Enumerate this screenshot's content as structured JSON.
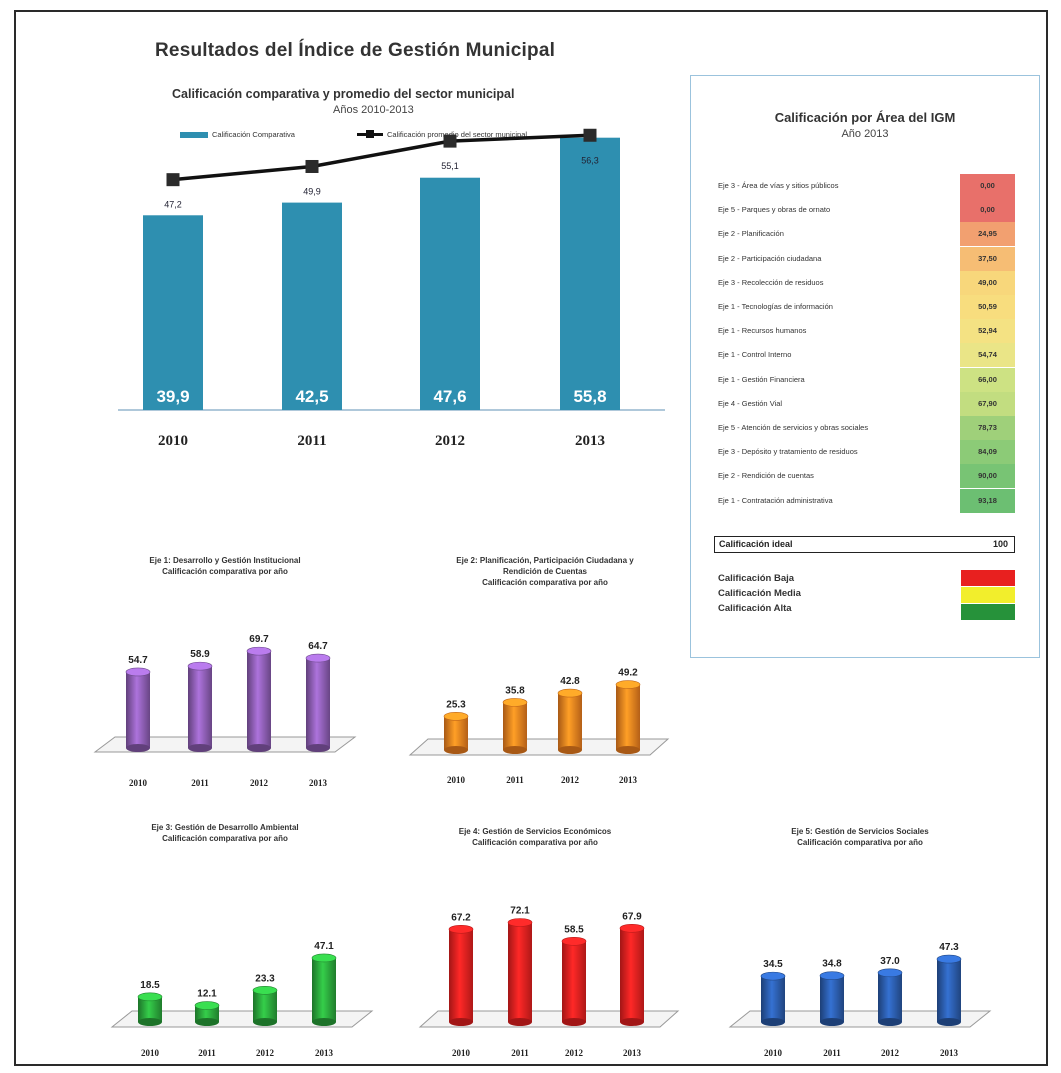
{
  "title": "Resultados del Índice de Gestión Municipal",
  "chart_data": [
    {
      "type": "bar",
      "title": "Calificación comparativa y promedio del sector municipal",
      "subtitle": "Años 2010-2013",
      "categories": [
        "2010",
        "2011",
        "2012",
        "2013"
      ],
      "series": [
        {
          "name": "Calificación Comparativa",
          "type": "bar",
          "values": [
            39.9,
            42.5,
            47.6,
            55.8
          ],
          "labels": [
            "39,9",
            "42,5",
            "47,6",
            "55,8"
          ],
          "color": "#2e8fb0"
        },
        {
          "name": "Calificación promedio del sector municipal",
          "type": "line",
          "values": [
            47.2,
            49.9,
            55.1,
            56.3
          ],
          "labels": [
            "47,2",
            "49,9",
            "55,1",
            "56,3"
          ],
          "color": "#111111"
        }
      ],
      "legend": "top"
    },
    {
      "type": "bar",
      "title": "Eje 1: Desarrollo y Gestión Institucional",
      "subtitle": "Calificación comparativa por año",
      "categories": [
        "2010",
        "2011",
        "2012",
        "2013"
      ],
      "values": [
        54.7,
        58.9,
        69.7,
        64.7
      ],
      "labels": [
        "54.7",
        "58.9",
        "69.7",
        "64.7"
      ],
      "color": "#8a5cb0"
    },
    {
      "type": "bar",
      "title": "Eje 2: Planificación, Participación Ciudadana y Rendición de Cuentas",
      "subtitle": "Calificación comparativa por año",
      "categories": [
        "2010",
        "2011",
        "2012",
        "2013"
      ],
      "values": [
        25.3,
        35.8,
        42.8,
        49.2
      ],
      "labels": [
        "25.3",
        "35.8",
        "42.8",
        "49.2"
      ],
      "color": "#f07f1e"
    },
    {
      "type": "bar",
      "title": "Eje 3: Gestión de Desarrollo Ambiental",
      "subtitle": "Calificación comparativa por año",
      "categories": [
        "2010",
        "2011",
        "2012",
        "2013"
      ],
      "values": [
        18.5,
        12.1,
        23.3,
        47.1
      ],
      "labels": [
        "18.5",
        "12.1",
        "23.3",
        "47.1"
      ],
      "color": "#2aa53b"
    },
    {
      "type": "bar",
      "title": "Eje 4: Gestión de Servicios Económicos",
      "subtitle": "Calificación comparativa por año",
      "categories": [
        "2010",
        "2011",
        "2012",
        "2013"
      ],
      "values": [
        67.2,
        72.1,
        58.5,
        67.9
      ],
      "labels": [
        "67.2",
        "72.1",
        "58.5",
        "67.9"
      ],
      "color": "#e8201f"
    },
    {
      "type": "bar",
      "title": "Eje 5: Gestión de Servicios Sociales",
      "subtitle": "Calificación comparativa por año",
      "categories": [
        "2010",
        "2011",
        "2012",
        "2013"
      ],
      "values": [
        34.5,
        34.8,
        37.0,
        47.3
      ],
      "labels": [
        "34.5",
        "34.8",
        "37.0",
        "47.3"
      ],
      "color": "#2a5aa8"
    },
    {
      "type": "table",
      "title": "Calificación por Área del IGM",
      "subtitle": "Año 2013",
      "rows": [
        {
          "label": "Eje 3 - Área de vías y sitios públicos",
          "value": "0,00",
          "color": "#e8706a"
        },
        {
          "label": "Eje 5 - Parques y obras de ornato",
          "value": "0,00",
          "color": "#e8706a"
        },
        {
          "label": "Eje 2 - Planificación",
          "value": "24,95",
          "color": "#f2a070"
        },
        {
          "label": "Eje 2 - Participación ciudadana",
          "value": "37,50",
          "color": "#f6bd74"
        },
        {
          "label": "Eje 3 - Recolección de residuos",
          "value": "49,00",
          "color": "#f8d77b"
        },
        {
          "label": "Eje 1 - Tecnologías de información",
          "value": "50,59",
          "color": "#f8dd7e"
        },
        {
          "label": "Eje 1 - Recursos humanos",
          "value": "52,94",
          "color": "#f4e283"
        },
        {
          "label": "Eje 1 - Control Interno",
          "value": "54,74",
          "color": "#eae587"
        },
        {
          "label": "Eje 1 - Gestión Financiera",
          "value": "66,00",
          "color": "#cde283"
        },
        {
          "label": "Eje 4 - Gestión Vial",
          "value": "67,90",
          "color": "#c2dd80"
        },
        {
          "label": "Eje 5 - Atención de servicios y obras sociales",
          "value": "78,73",
          "color": "#9fd07a"
        },
        {
          "label": "Eje 3 - Depósito y tratamiento de residuos",
          "value": "84,09",
          "color": "#8ccb77"
        },
        {
          "label": "Eje 2 - Rendición de cuentas",
          "value": "90,00",
          "color": "#78c474"
        },
        {
          "label": "Eje 1 - Contratación administrativa",
          "value": "93,18",
          "color": "#6cbf72"
        }
      ],
      "ideal": {
        "label": "Calificación ideal",
        "value": "100"
      },
      "levels": [
        {
          "label": "Calificación Baja",
          "color": "#e8201f"
        },
        {
          "label": "Calificación Media",
          "color": "#f2ee2c"
        },
        {
          "label": "Calificación Alta",
          "color": "#26923a"
        }
      ]
    }
  ]
}
